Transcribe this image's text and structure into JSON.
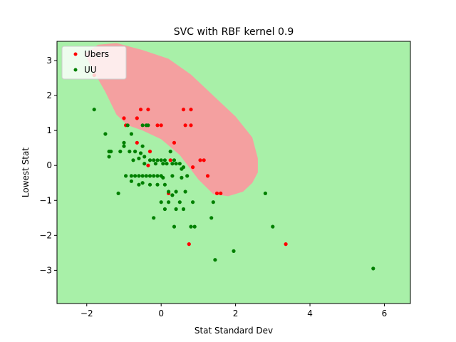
{
  "chart_data": {
    "type": "scatter",
    "title": "SVC with RBF kernel 0.9",
    "xlabel": "Stat Standard Dev",
    "ylabel": "Lowest Stat",
    "xlim": [
      -2.8,
      6.7
    ],
    "ylim": [
      -3.95,
      3.55
    ],
    "xticks": [
      -2,
      0,
      2,
      4,
      6
    ],
    "yticks": [
      -3,
      -2,
      -1,
      0,
      1,
      2,
      3
    ],
    "grid": false,
    "legend_position": "top-left",
    "background_region_color": "#a8f0a8",
    "decision_region_color": "#f4a0a0",
    "decision_region": [
      [
        -2.05,
        3.2
      ],
      [
        -1.7,
        3.45
      ],
      [
        -1.2,
        3.5
      ],
      [
        -0.5,
        3.3
      ],
      [
        0.2,
        3.05
      ],
      [
        0.8,
        2.6
      ],
      [
        1.4,
        2.0
      ],
      [
        2.0,
        1.4
      ],
      [
        2.45,
        0.8
      ],
      [
        2.6,
        0.2
      ],
      [
        2.6,
        -0.2
      ],
      [
        2.45,
        -0.5
      ],
      [
        2.2,
        -0.75
      ],
      [
        1.8,
        -0.88
      ],
      [
        1.4,
        -0.82
      ],
      [
        1.0,
        -0.4
      ],
      [
        0.5,
        0.3
      ],
      [
        0.0,
        0.75
      ],
      [
        -0.5,
        1.0
      ],
      [
        -0.9,
        1.15
      ],
      [
        -1.2,
        1.45
      ],
      [
        -1.5,
        2.1
      ],
      [
        -1.9,
        2.85
      ]
    ],
    "series": [
      {
        "name": "Ubers",
        "color": "#ff0000",
        "points": [
          [
            -1.8,
            2.58
          ],
          [
            -1.0,
            1.35
          ],
          [
            -0.95,
            1.15
          ],
          [
            -0.65,
            1.35
          ],
          [
            -0.55,
            1.6
          ],
          [
            -0.35,
            1.6
          ],
          [
            -0.1,
            1.15
          ],
          [
            0.0,
            1.15
          ],
          [
            0.6,
            1.6
          ],
          [
            0.8,
            1.6
          ],
          [
            0.65,
            1.15
          ],
          [
            0.8,
            1.15
          ],
          [
            -0.65,
            0.65
          ],
          [
            -0.3,
            0.4
          ],
          [
            0.35,
            0.65
          ],
          [
            -0.35,
            0.0
          ],
          [
            0.25,
            0.15
          ],
          [
            0.85,
            -0.05
          ],
          [
            1.05,
            0.15
          ],
          [
            1.15,
            0.15
          ],
          [
            1.25,
            -0.3
          ],
          [
            0.2,
            -0.8
          ],
          [
            1.5,
            -0.8
          ],
          [
            1.6,
            -0.8
          ],
          [
            0.75,
            -2.25
          ],
          [
            3.35,
            -2.25
          ]
        ]
      },
      {
        "name": "UU",
        "color": "#008000",
        "points": [
          [
            -1.8,
            1.6
          ],
          [
            -1.5,
            0.9
          ],
          [
            -1.4,
            0.4
          ],
          [
            -1.35,
            0.4
          ],
          [
            -1.4,
            0.25
          ],
          [
            -1.15,
            -0.8
          ],
          [
            -1.1,
            0.4
          ],
          [
            -1.0,
            0.55
          ],
          [
            -1.0,
            0.65
          ],
          [
            -0.9,
            1.15
          ],
          [
            -0.8,
            0.9
          ],
          [
            -0.85,
            0.4
          ],
          [
            -0.75,
            0.15
          ],
          [
            -0.7,
            0.4
          ],
          [
            -0.6,
            0.2
          ],
          [
            -0.55,
            0.35
          ],
          [
            -0.5,
            0.55
          ],
          [
            -0.45,
            0.25
          ],
          [
            -0.5,
            1.15
          ],
          [
            -0.4,
            1.15
          ],
          [
            -0.35,
            1.15
          ],
          [
            -0.45,
            0.05
          ],
          [
            -0.3,
            0.15
          ],
          [
            -0.2,
            0.15
          ],
          [
            -0.15,
            0.05
          ],
          [
            -0.1,
            0.15
          ],
          [
            0.0,
            0.15
          ],
          [
            0.05,
            0.05
          ],
          [
            0.1,
            0.15
          ],
          [
            0.15,
            0.05
          ],
          [
            0.25,
            0.4
          ],
          [
            0.3,
            0.05
          ],
          [
            0.35,
            0.15
          ],
          [
            0.4,
            0.05
          ],
          [
            0.5,
            0.05
          ],
          [
            0.55,
            -0.1
          ],
          [
            0.6,
            -0.05
          ],
          [
            0.7,
            -0.3
          ],
          [
            -0.95,
            -0.3
          ],
          [
            -0.8,
            -0.3
          ],
          [
            -0.7,
            -0.3
          ],
          [
            -0.6,
            -0.3
          ],
          [
            -0.5,
            -0.3
          ],
          [
            -0.4,
            -0.3
          ],
          [
            -0.3,
            -0.3
          ],
          [
            -0.2,
            -0.3
          ],
          [
            -0.1,
            -0.3
          ],
          [
            0.0,
            -0.3
          ],
          [
            0.05,
            -0.35
          ],
          [
            0.3,
            -0.3
          ],
          [
            0.55,
            -0.35
          ],
          [
            -0.8,
            -0.45
          ],
          [
            -0.6,
            -0.55
          ],
          [
            -0.5,
            -0.5
          ],
          [
            -0.3,
            -0.55
          ],
          [
            -0.1,
            -0.55
          ],
          [
            0.1,
            -0.55
          ],
          [
            0.2,
            -0.75
          ],
          [
            0.3,
            -0.85
          ],
          [
            0.4,
            -0.75
          ],
          [
            0.65,
            -0.75
          ],
          [
            0.0,
            -1.05
          ],
          [
            0.2,
            -1.05
          ],
          [
            0.5,
            -1.05
          ],
          [
            0.6,
            -1.25
          ],
          [
            0.85,
            -1.05
          ],
          [
            1.4,
            -1.05
          ],
          [
            -0.2,
            -1.5
          ],
          [
            0.1,
            -1.25
          ],
          [
            0.4,
            -1.25
          ],
          [
            0.8,
            -1.75
          ],
          [
            0.9,
            -1.75
          ],
          [
            1.35,
            -1.5
          ],
          [
            0.35,
            -1.75
          ],
          [
            2.8,
            -0.8
          ],
          [
            3.0,
            -1.75
          ],
          [
            1.45,
            -2.7
          ],
          [
            1.95,
            -2.45
          ],
          [
            5.7,
            -2.95
          ]
        ]
      }
    ]
  }
}
